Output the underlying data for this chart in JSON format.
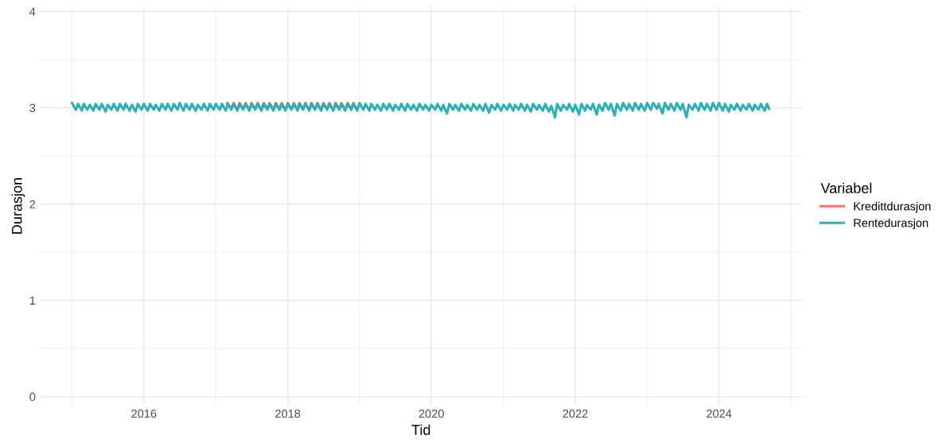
{
  "chart_data": {
    "type": "line",
    "xlabel": "Tid",
    "ylabel": "Durasjon",
    "legend_title": "Variabel",
    "legend": "right",
    "grid": true,
    "xlim": [
      "2014-07-20",
      "2025-03-01"
    ],
    "xticks": [
      {
        "value": "2015-01-01",
        "label": null
      },
      {
        "value": "2016-01-01",
        "label": "2016"
      },
      {
        "value": "2017-01-01",
        "label": null
      },
      {
        "value": "2018-01-01",
        "label": "2018"
      },
      {
        "value": "2019-01-01",
        "label": null
      },
      {
        "value": "2020-01-01",
        "label": "2020"
      },
      {
        "value": "2021-01-01",
        "label": null
      },
      {
        "value": "2022-01-01",
        "label": "2022"
      },
      {
        "value": "2023-01-01",
        "label": null
      },
      {
        "value": "2024-01-01",
        "label": "2024"
      },
      {
        "value": "2025-01-01",
        "label": null
      }
    ],
    "ylim": [
      -0.09,
      4.05
    ],
    "yticks": [
      0,
      {
        "value": 0.5,
        "label": null
      },
      1,
      {
        "value": 1.5,
        "label": null
      },
      2,
      {
        "value": 2.5,
        "label": null
      },
      3,
      {
        "value": 3.5,
        "label": null
      },
      4
    ],
    "x": [
      "2015-01-01",
      "2015-01-20",
      "2015-02-01",
      "2015-02-20",
      "2015-03-01",
      "2015-03-20",
      "2015-04-01",
      "2015-04-20",
      "2015-05-01",
      "2015-05-20",
      "2015-06-01",
      "2015-06-20",
      "2015-07-01",
      "2015-07-20",
      "2015-08-01",
      "2015-08-20",
      "2015-09-01",
      "2015-09-20",
      "2015-10-01",
      "2015-10-20",
      "2015-11-01",
      "2015-11-20",
      "2015-12-01",
      "2015-12-20",
      "2016-01-01",
      "2016-01-20",
      "2016-02-01",
      "2016-02-20",
      "2016-03-01",
      "2016-03-20",
      "2016-04-01",
      "2016-04-20",
      "2016-05-01",
      "2016-05-20",
      "2016-06-01",
      "2016-06-20",
      "2016-07-01",
      "2016-07-20",
      "2016-08-01",
      "2016-08-20",
      "2016-09-01",
      "2016-09-20",
      "2016-10-01",
      "2016-10-20",
      "2016-11-01",
      "2016-11-20",
      "2016-12-01",
      "2016-12-20",
      "2017-01-01",
      "2017-01-20",
      "2017-02-01",
      "2017-02-20",
      "2017-03-01",
      "2017-03-20",
      "2017-04-01",
      "2017-04-20",
      "2017-05-01",
      "2017-05-20",
      "2017-06-01",
      "2017-06-20",
      "2017-07-01",
      "2017-07-20",
      "2017-08-01",
      "2017-08-20",
      "2017-09-01",
      "2017-09-20",
      "2017-10-01",
      "2017-10-20",
      "2017-11-01",
      "2017-11-20",
      "2017-12-01",
      "2017-12-20",
      "2018-01-01",
      "2018-01-20",
      "2018-02-01",
      "2018-02-20",
      "2018-03-01",
      "2018-03-20",
      "2018-04-01",
      "2018-04-20",
      "2018-05-01",
      "2018-05-20",
      "2018-06-01",
      "2018-06-20",
      "2018-07-01",
      "2018-07-20",
      "2018-08-01",
      "2018-08-20",
      "2018-09-01",
      "2018-09-20",
      "2018-10-01",
      "2018-10-20",
      "2018-11-01",
      "2018-11-20",
      "2018-12-01",
      "2018-12-20",
      "2019-01-01",
      "2019-01-20",
      "2019-02-01",
      "2019-02-20",
      "2019-03-01",
      "2019-03-20",
      "2019-04-01",
      "2019-04-20",
      "2019-05-01",
      "2019-05-20",
      "2019-06-01",
      "2019-06-20",
      "2019-07-01",
      "2019-07-20",
      "2019-08-01",
      "2019-08-20",
      "2019-09-01",
      "2019-09-20",
      "2019-10-01",
      "2019-10-20",
      "2019-11-01",
      "2019-11-20",
      "2019-12-01",
      "2019-12-20",
      "2020-01-01",
      "2020-01-20",
      "2020-02-01",
      "2020-02-20",
      "2020-03-01",
      "2020-03-20",
      "2020-04-01",
      "2020-04-20",
      "2020-05-01",
      "2020-05-20",
      "2020-06-01",
      "2020-06-20",
      "2020-07-01",
      "2020-07-20",
      "2020-08-01",
      "2020-08-20",
      "2020-09-01",
      "2020-09-20",
      "2020-10-01",
      "2020-10-20",
      "2020-11-01",
      "2020-11-20",
      "2020-12-01",
      "2020-12-20",
      "2021-01-01",
      "2021-01-20",
      "2021-02-01",
      "2021-02-20",
      "2021-03-01",
      "2021-03-20",
      "2021-04-01",
      "2021-04-20",
      "2021-05-01",
      "2021-05-20",
      "2021-06-01",
      "2021-06-20",
      "2021-07-01",
      "2021-07-20",
      "2021-08-01",
      "2021-08-20",
      "2021-09-01",
      "2021-09-20",
      "2021-10-01",
      "2021-10-20",
      "2021-11-01",
      "2021-11-20",
      "2021-12-01",
      "2021-12-20",
      "2022-01-01",
      "2022-01-20",
      "2022-02-01",
      "2022-02-20",
      "2022-03-01",
      "2022-03-20",
      "2022-04-01",
      "2022-04-20",
      "2022-05-01",
      "2022-05-20",
      "2022-06-01",
      "2022-06-20",
      "2022-07-01",
      "2022-07-20",
      "2022-08-01",
      "2022-08-20",
      "2022-09-01",
      "2022-09-20",
      "2022-10-01",
      "2022-10-20",
      "2022-11-01",
      "2022-11-20",
      "2022-12-01",
      "2022-12-20",
      "2023-01-01",
      "2023-01-20",
      "2023-02-01",
      "2023-02-20",
      "2023-03-01",
      "2023-03-20",
      "2023-04-01",
      "2023-04-20",
      "2023-05-01",
      "2023-05-20",
      "2023-06-01",
      "2023-06-20",
      "2023-07-01",
      "2023-07-20",
      "2023-08-01",
      "2023-08-20",
      "2023-09-01",
      "2023-09-20",
      "2023-10-01",
      "2023-10-20",
      "2023-11-01",
      "2023-11-20",
      "2023-12-01",
      "2023-12-20",
      "2024-01-01",
      "2024-01-20",
      "2024-02-01",
      "2024-02-20",
      "2024-03-01",
      "2024-03-20",
      "2024-04-01",
      "2024-04-20",
      "2024-05-01",
      "2024-05-20",
      "2024-06-01",
      "2024-06-20",
      "2024-07-01",
      "2024-07-20",
      "2024-08-01",
      "2024-08-20",
      "2024-09-01",
      "2024-09-12"
    ],
    "series": [
      {
        "name": "Kredittdurasjon",
        "color": "#f8766d",
        "x": [
          "2017-03-01",
          "2017-03-20",
          "2017-04-01",
          "2017-04-20",
          "2017-05-01",
          "2017-05-20",
          "2017-06-01",
          "2017-06-20",
          "2017-07-01",
          "2017-07-20",
          "2017-08-01",
          "2017-08-20",
          "2017-09-01",
          "2017-09-20",
          "2017-10-01",
          "2017-10-20",
          "2017-11-01",
          "2017-11-20",
          "2017-12-01",
          "2017-12-20",
          "2018-01-01",
          "2018-01-20",
          "2018-02-01",
          "2018-02-20",
          "2018-03-01",
          "2018-03-20",
          "2018-04-01",
          "2018-04-20",
          "2018-05-01",
          "2018-05-20",
          "2018-06-01",
          "2018-06-20",
          "2018-07-01",
          "2018-07-20",
          "2018-08-01",
          "2018-08-20",
          "2018-09-01",
          "2018-09-20",
          "2018-10-01",
          "2018-10-20",
          "2018-11-01",
          "2018-11-20",
          "2018-12-01",
          "2018-12-20"
        ],
        "values": [
          3.05,
          2.99,
          3.05,
          2.98,
          3.05,
          2.99,
          3.05,
          2.98,
          3.05,
          2.99,
          3.05,
          2.98,
          3.05,
          2.99,
          3.05,
          2.98,
          3.05,
          2.99,
          3.05,
          2.98,
          3.05,
          2.99,
          3.05,
          2.98,
          3.05,
          2.99,
          3.05,
          2.98,
          3.05,
          2.99,
          3.05,
          2.98,
          3.05,
          2.99,
          3.05,
          2.98,
          3.05,
          2.99,
          3.05,
          2.98,
          3.05,
          2.99,
          3.05,
          2.98
        ]
      },
      {
        "name": "Rentedurasjon",
        "color": "#26b2b6",
        "values": [
          3.05,
          2.98,
          3.04,
          2.97,
          3.04,
          2.98,
          3.03,
          2.97,
          3.04,
          2.98,
          3.04,
          2.96,
          3.03,
          2.98,
          3.04,
          2.97,
          3.04,
          2.98,
          3.04,
          2.97,
          3.03,
          2.96,
          3.04,
          2.98,
          3.04,
          2.97,
          3.04,
          2.98,
          3.03,
          2.97,
          3.04,
          2.98,
          3.04,
          2.97,
          3.04,
          2.98,
          3.05,
          2.97,
          3.04,
          2.98,
          3.04,
          2.97,
          3.03,
          2.98,
          3.04,
          2.97,
          3.04,
          2.98,
          3.04,
          2.98,
          3.04,
          2.97,
          3.04,
          2.98,
          3.04,
          2.97,
          3.04,
          2.98,
          3.04,
          2.97,
          3.04,
          2.98,
          3.04,
          2.97,
          3.04,
          2.98,
          3.04,
          2.97,
          3.04,
          2.98,
          3.04,
          2.97,
          3.04,
          2.98,
          3.04,
          2.97,
          3.04,
          2.98,
          3.04,
          2.97,
          3.04,
          2.98,
          3.04,
          2.97,
          3.04,
          2.98,
          3.04,
          2.97,
          3.04,
          2.98,
          3.04,
          2.97,
          3.04,
          2.98,
          3.04,
          2.97,
          3.05,
          2.98,
          3.04,
          2.97,
          3.04,
          2.98,
          3.03,
          2.97,
          3.04,
          2.98,
          3.04,
          2.97,
          3.03,
          2.98,
          3.04,
          2.97,
          3.04,
          2.98,
          3.03,
          2.97,
          3.04,
          2.98,
          3.03,
          2.97,
          3.03,
          2.98,
          3.04,
          2.97,
          3.03,
          2.94,
          3.04,
          2.98,
          3.03,
          2.97,
          3.04,
          2.98,
          3.03,
          2.97,
          3.04,
          2.98,
          3.03,
          2.97,
          3.04,
          2.95,
          3.03,
          2.98,
          3.04,
          2.97,
          3.03,
          2.98,
          3.04,
          2.97,
          3.03,
          2.98,
          3.04,
          2.97,
          3.03,
          2.96,
          3.04,
          2.98,
          3.03,
          2.97,
          3.04,
          2.96,
          3.02,
          2.9,
          3.04,
          2.97,
          3.03,
          2.98,
          3.04,
          2.96,
          3.03,
          2.93,
          3.04,
          2.97,
          3.03,
          2.98,
          3.04,
          2.93,
          3.03,
          2.97,
          3.05,
          2.98,
          3.04,
          2.92,
          3.04,
          2.97,
          3.05,
          2.98,
          3.04,
          2.97,
          3.05,
          2.98,
          3.04,
          2.97,
          3.05,
          2.98,
          3.05,
          2.99,
          3.04,
          2.94,
          3.05,
          2.98,
          3.04,
          2.97,
          3.05,
          2.98,
          3.04,
          2.9,
          3.03,
          2.98,
          3.04,
          2.97,
          3.05,
          2.98,
          3.04,
          2.97,
          3.05,
          2.98,
          3.05,
          2.97,
          3.04,
          2.96,
          3.03,
          2.98,
          3.04,
          2.97,
          3.03,
          2.98,
          3.04,
          2.97,
          3.03,
          2.98,
          3.04,
          2.97,
          3.04,
          2.99
        ]
      }
    ]
  }
}
